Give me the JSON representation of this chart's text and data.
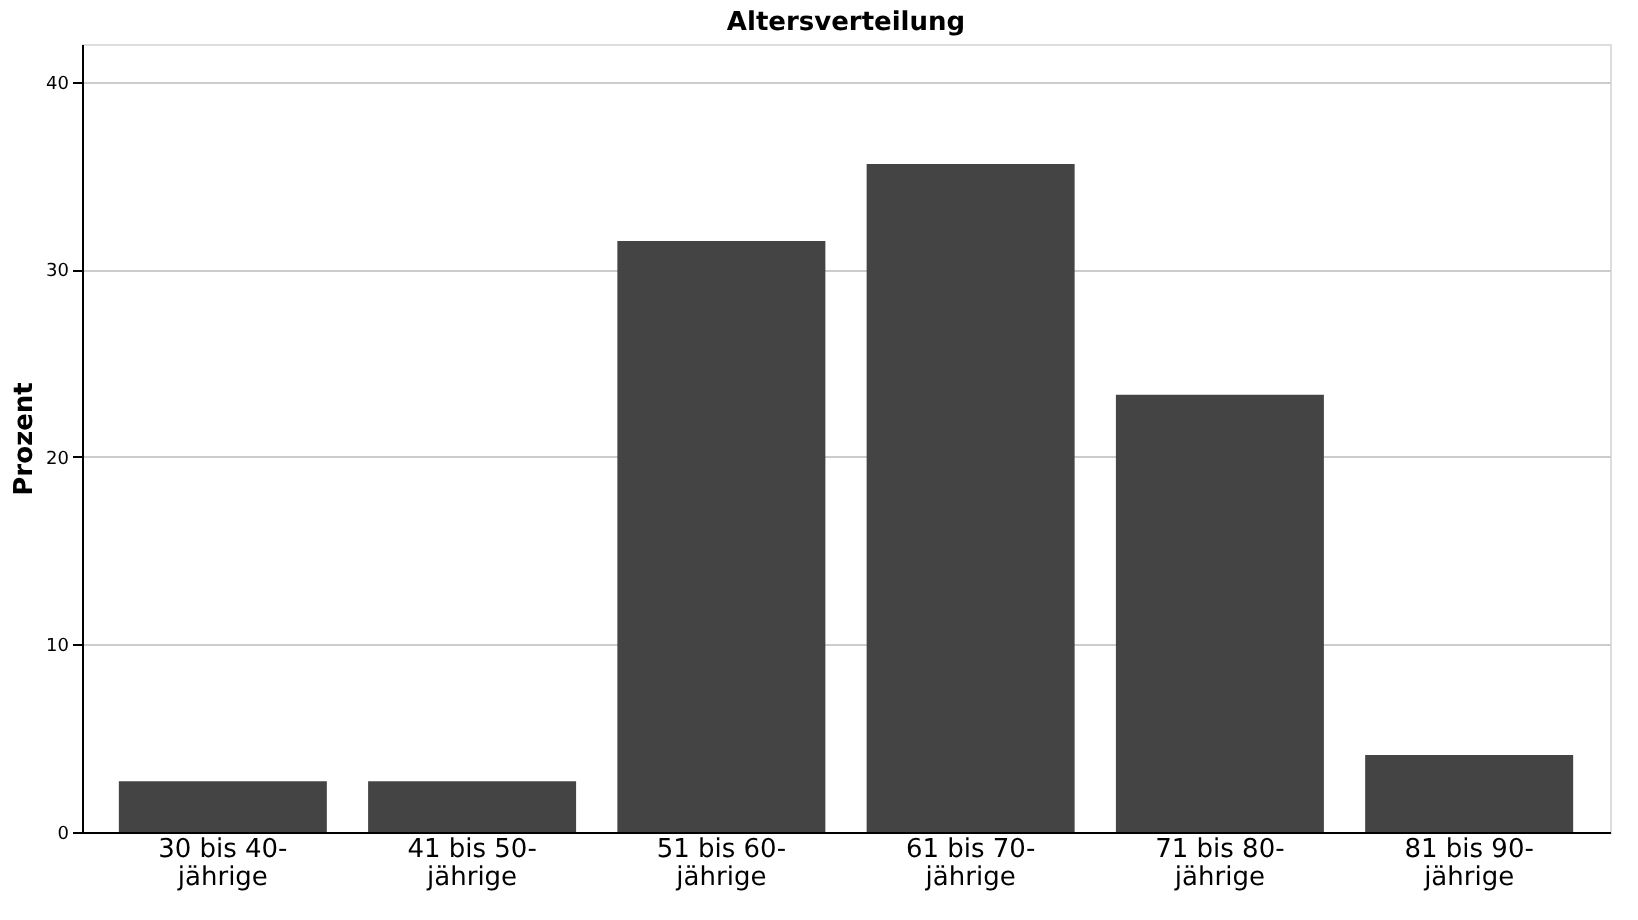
{
  "chart_data": {
    "type": "bar",
    "title": "Altersverteilung",
    "ylabel": "Prozent",
    "categories": [
      "30 bis 40- jährige",
      "41 bis 50- jährige",
      "51 bis 60- jährige",
      "61 bis 70- jährige",
      "71 bis 80- jährige",
      "81 bis 90- jährige"
    ],
    "values": [
      2.7,
      2.7,
      31.5,
      35.6,
      23.3,
      4.1
    ],
    "color": "#444444",
    "ylim": [
      0,
      42
    ],
    "yticks": [
      0,
      10,
      20,
      30,
      40
    ],
    "grid": "y"
  }
}
